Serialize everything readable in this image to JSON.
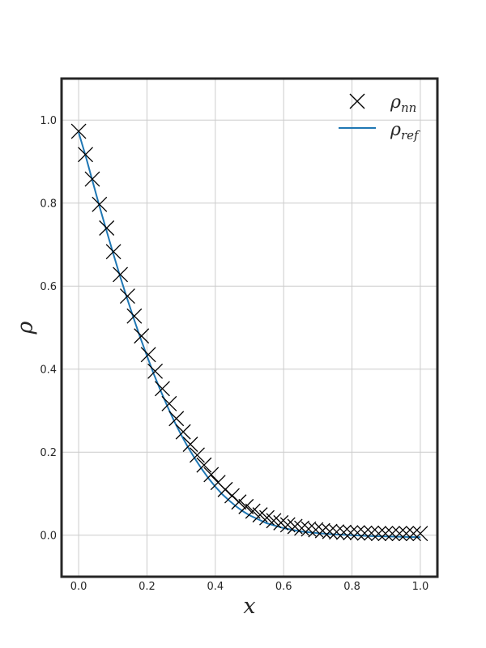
{
  "chart_data": {
    "type": "line",
    "xlabel": "x",
    "ylabel": "ρ",
    "xlim": [
      -0.05,
      1.05
    ],
    "ylim": [
      -0.1,
      1.1
    ],
    "xticks": [
      0.0,
      0.2,
      0.4,
      0.6,
      0.8,
      1.0
    ],
    "xtick_labels": [
      "0.0",
      "0.2",
      "0.4",
      "0.6",
      "0.8",
      "1.0"
    ],
    "yticks": [
      0.0,
      0.2,
      0.4,
      0.6,
      0.8,
      1.0
    ],
    "ytick_labels": [
      "0.0",
      "0.2",
      "0.4",
      "0.6",
      "0.8",
      "1.0"
    ],
    "grid": true,
    "legend_position": "top-right",
    "legend": [
      {
        "base": "ρ",
        "sub": "nn",
        "marker": "x",
        "color": "#000000"
      },
      {
        "base": "ρ",
        "sub": "ref",
        "marker": "line",
        "color": "#1f77b4"
      }
    ],
    "series": [
      {
        "name": "ρnn",
        "style": "markers-x",
        "color": "#000000",
        "x": [
          0.0,
          0.02,
          0.04,
          0.061,
          0.082,
          0.102,
          0.122,
          0.143,
          0.163,
          0.184,
          0.204,
          0.224,
          0.245,
          0.265,
          0.286,
          0.306,
          0.327,
          0.347,
          0.367,
          0.388,
          0.408,
          0.429,
          0.449,
          0.469,
          0.49,
          0.51,
          0.531,
          0.551,
          0.571,
          0.592,
          0.612,
          0.633,
          0.653,
          0.673,
          0.694,
          0.714,
          0.735,
          0.755,
          0.776,
          0.796,
          0.816,
          0.837,
          0.857,
          0.878,
          0.898,
          0.918,
          0.939,
          0.959,
          0.98,
          1.0
        ],
        "y": [
          0.973,
          0.917,
          0.858,
          0.797,
          0.74,
          0.683,
          0.628,
          0.576,
          0.528,
          0.48,
          0.435,
          0.395,
          0.353,
          0.317,
          0.281,
          0.249,
          0.219,
          0.193,
          0.169,
          0.146,
          0.127,
          0.11,
          0.095,
          0.08,
          0.069,
          0.058,
          0.049,
          0.042,
          0.035,
          0.03,
          0.025,
          0.021,
          0.017,
          0.015,
          0.013,
          0.011,
          0.009,
          0.008,
          0.007,
          0.006,
          0.006,
          0.005,
          0.005,
          0.004,
          0.004,
          0.004,
          0.004,
          0.004,
          0.004,
          0.004
        ]
      },
      {
        "name": "ρref",
        "style": "line",
        "color": "#1f77b4",
        "x": [
          0.0,
          0.02,
          0.04,
          0.06,
          0.08,
          0.1,
          0.12,
          0.14,
          0.16,
          0.18,
          0.2,
          0.22,
          0.24,
          0.26,
          0.28,
          0.3,
          0.32,
          0.34,
          0.36,
          0.38,
          0.4,
          0.42,
          0.44,
          0.46,
          0.48,
          0.5,
          0.55,
          0.6,
          0.65,
          0.7,
          0.75,
          0.8,
          0.85,
          0.9,
          0.95,
          1.0
        ],
        "y": [
          0.97,
          0.915,
          0.855,
          0.795,
          0.738,
          0.682,
          0.627,
          0.575,
          0.525,
          0.477,
          0.432,
          0.388,
          0.348,
          0.31,
          0.274,
          0.242,
          0.212,
          0.185,
          0.16,
          0.137,
          0.117,
          0.099,
          0.084,
          0.07,
          0.058,
          0.048,
          0.029,
          0.017,
          0.009,
          0.005,
          0.002,
          0.0,
          -0.002,
          -0.003,
          -0.004,
          -0.005
        ]
      }
    ]
  }
}
